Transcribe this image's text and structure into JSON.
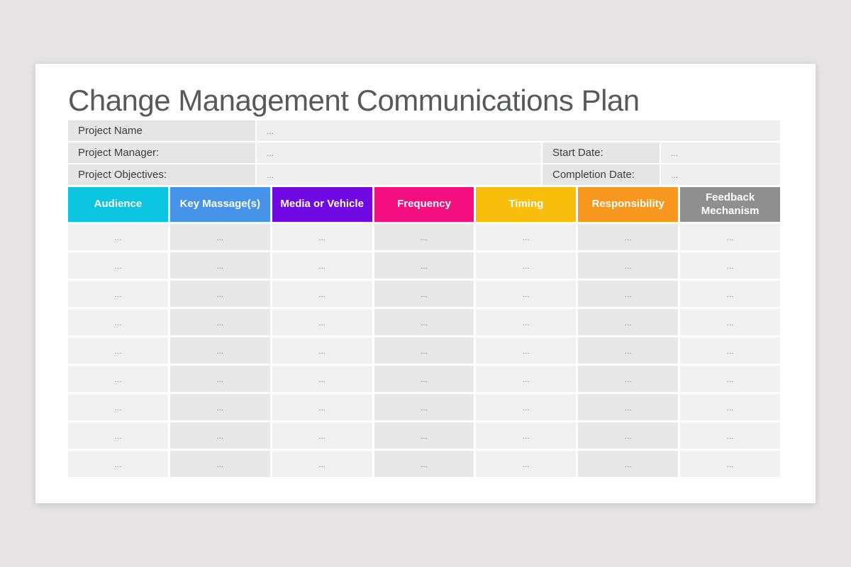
{
  "colors": {
    "page_bg": "#e6e4e4",
    "slide_bg": "#ffffff",
    "title_text": "#58595b",
    "label_cell_bg": "#e7e6e6",
    "value_cell_bg": "#f0efef",
    "body_cell_light": "#f1f1f1",
    "body_cell_dark": "#e8e8e8",
    "placeholder_text": "#8f8f8f",
    "header_text": "#ffffff"
  },
  "slide": {
    "title": "Change Management Communications Plan"
  },
  "info": {
    "project_name": {
      "label": "Project Name",
      "value": "..."
    },
    "project_manager": {
      "label": "Project Manager:",
      "value": "..."
    },
    "start_date": {
      "label": "Start Date:",
      "value": "..."
    },
    "project_objectives": {
      "label": "Project Objectives:",
      "value": "..."
    },
    "completion_date": {
      "label": "Completion Date:",
      "value": "..."
    }
  },
  "table": {
    "headers": [
      {
        "label": "Audience",
        "color": "#0bc5e0"
      },
      {
        "label": "Key Massage(s)",
        "color": "#4594ea"
      },
      {
        "label": "Media or Vehicle",
        "color": "#7109e2"
      },
      {
        "label": "Frequency",
        "color": "#f40e80"
      },
      {
        "label": "Timing",
        "color": "#f9be0b"
      },
      {
        "label": "Responsibility",
        "color": "#f8971d"
      },
      {
        "label": "Feedback Mechanism",
        "color": "#8f8f8f"
      }
    ],
    "row_count": 9,
    "cell_placeholder": "..."
  }
}
